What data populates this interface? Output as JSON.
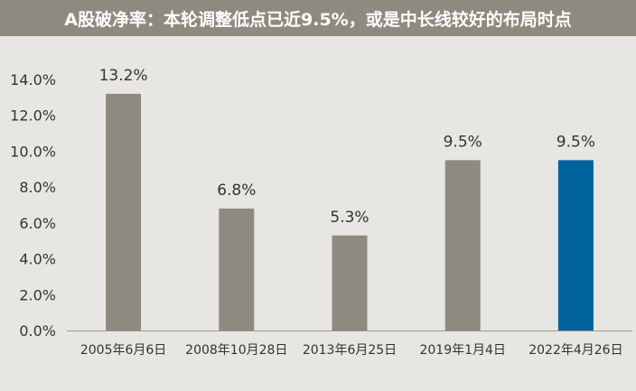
{
  "title": "A股破净率：本轮调整低点已近9.5%，或是中长线较好的布局时点",
  "chart_data": {
    "type": "bar",
    "categories": [
      "2005年6月6日",
      "2008年10月28日",
      "2013年6月25日",
      "2019年1月4日",
      "2022年4月26日"
    ],
    "values": [
      13.2,
      6.8,
      5.3,
      9.5,
      9.5
    ],
    "value_labels": [
      "13.2%",
      "6.8%",
      "5.3%",
      "9.5%",
      "9.5%"
    ],
    "ylim": [
      0,
      14
    ],
    "y_ticks": [
      "0.0%",
      "2.0%",
      "4.0%",
      "6.0%",
      "8.0%",
      "10.0%",
      "12.0%",
      "14.0%"
    ],
    "xlabel": "",
    "ylabel": "",
    "grid": false,
    "colors": {
      "bar_default": "#8e8a80",
      "bar_highlight": "#00629b",
      "axis": "#9a9892",
      "text": "#333333"
    },
    "highlight_index": 4
  }
}
